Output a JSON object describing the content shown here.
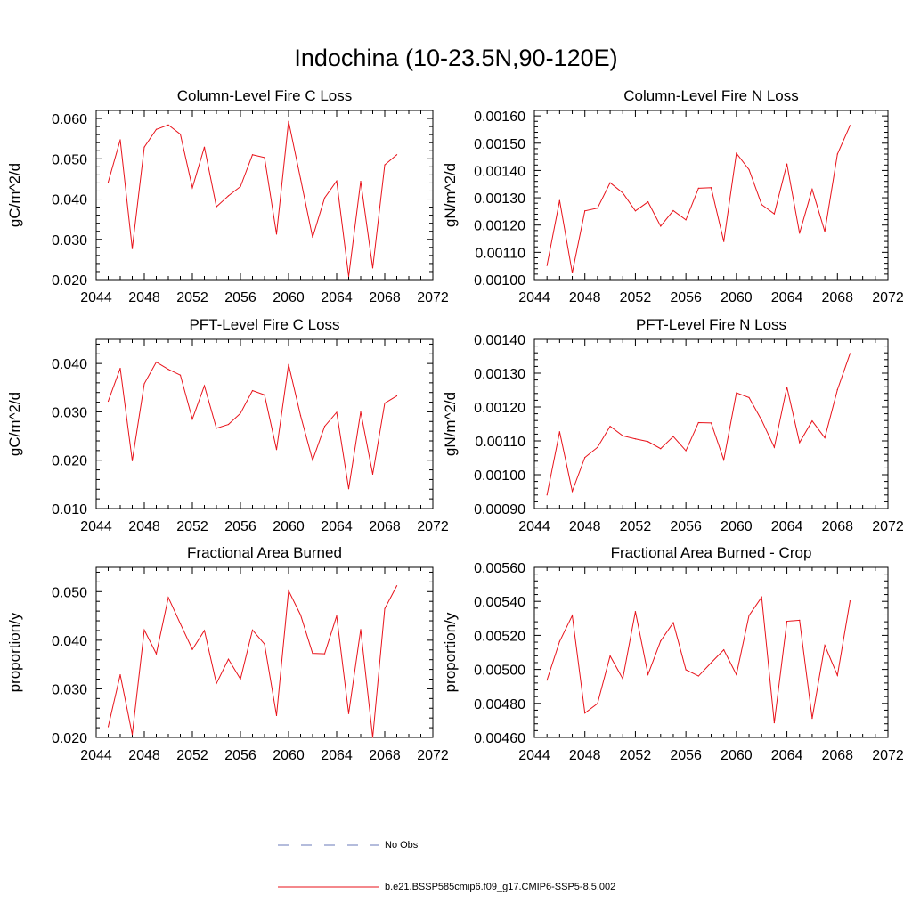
{
  "title": "Indochina (10-23.5N,90-120E)",
  "series_name": "b.e21.BSSP585cmip6.f09_g17.CMIP6-SSP5-8.5.002",
  "obs_name": "No Obs",
  "colors": {
    "series": "#e8121a",
    "obs": "#6a78b8",
    "axis": "#000000"
  },
  "chart_data": [
    {
      "type": "line",
      "title": "Column-Level Fire C Loss",
      "ylabel": "gC/m^2/d",
      "xlim": [
        2044,
        2072
      ],
      "ylim": [
        0.02,
        0.062
      ],
      "xticks": [
        "2044",
        "2048",
        "2052",
        "2056",
        "2060",
        "2064",
        "2068",
        "2072"
      ],
      "yticks": [
        0.02,
        0.03,
        0.04,
        0.05,
        0.06
      ],
      "ytick_labels": [
        "0.020",
        "0.030",
        "0.040",
        "0.050",
        "0.060"
      ],
      "x": [
        2045,
        2046,
        2047,
        2048,
        2049,
        2050,
        2051,
        2052,
        2053,
        2054,
        2055,
        2056,
        2057,
        2058,
        2059,
        2060,
        2061,
        2062,
        2063,
        2064,
        2065,
        2066,
        2067,
        2068,
        2069
      ],
      "values": [
        0.0442,
        0.0547,
        0.0277,
        0.0529,
        0.0573,
        0.0584,
        0.0561,
        0.0428,
        0.0529,
        0.0381,
        0.0408,
        0.0431,
        0.051,
        0.0503,
        0.0313,
        0.0593,
        0.045,
        0.0305,
        0.0403,
        0.0445,
        0.0208,
        0.0444,
        0.0229,
        0.0485,
        0.051
      ]
    },
    {
      "type": "line",
      "title": "Column-Level Fire N Loss",
      "ylabel": "gN/m^2/d",
      "xlim": [
        2044,
        2072
      ],
      "ylim": [
        0.001,
        0.00162
      ],
      "xticks": [
        "2044",
        "2048",
        "2052",
        "2056",
        "2060",
        "2064",
        "2068",
        "2072"
      ],
      "yticks": [
        0.001,
        0.0011,
        0.0012,
        0.0013,
        0.0014,
        0.0015,
        0.0016
      ],
      "ytick_labels": [
        "0.00100",
        "0.00110",
        "0.00120",
        "0.00130",
        "0.00140",
        "0.00150",
        "0.00160"
      ],
      "x": [
        2045,
        2046,
        2047,
        2048,
        2049,
        2050,
        2051,
        2052,
        2053,
        2054,
        2055,
        2056,
        2057,
        2058,
        2059,
        2060,
        2061,
        2062,
        2063,
        2064,
        2065,
        2066,
        2067,
        2068,
        2069
      ],
      "values": [
        0.001052,
        0.00129,
        0.001025,
        0.001252,
        0.001262,
        0.001355,
        0.001318,
        0.001252,
        0.001285,
        0.001196,
        0.001253,
        0.001219,
        0.001335,
        0.001337,
        0.00114,
        0.001463,
        0.001403,
        0.001275,
        0.001241,
        0.001424,
        0.00117,
        0.001331,
        0.001176,
        0.00146,
        0.001565
      ]
    },
    {
      "type": "line",
      "title": "PFT-Level Fire C Loss",
      "ylabel": "gC/m^2/d",
      "xlim": [
        2044,
        2072
      ],
      "ylim": [
        0.01,
        0.045
      ],
      "xticks": [
        "2044",
        "2048",
        "2052",
        "2056",
        "2060",
        "2064",
        "2068",
        "2072"
      ],
      "yticks": [
        0.01,
        0.02,
        0.03,
        0.04
      ],
      "ytick_labels": [
        "0.010",
        "0.020",
        "0.030",
        "0.040"
      ],
      "x": [
        2045,
        2046,
        2047,
        2048,
        2049,
        2050,
        2051,
        2052,
        2053,
        2054,
        2055,
        2056,
        2057,
        2058,
        2059,
        2060,
        2061,
        2062,
        2063,
        2064,
        2065,
        2066,
        2067,
        2068,
        2069
      ],
      "values": [
        0.0322,
        0.039,
        0.0199,
        0.0358,
        0.0403,
        0.0388,
        0.0376,
        0.0285,
        0.0354,
        0.0266,
        0.0274,
        0.0297,
        0.0344,
        0.0335,
        0.0222,
        0.0398,
        0.0292,
        0.02,
        0.027,
        0.0299,
        0.0141,
        0.03,
        0.0171,
        0.0318,
        0.0333
      ]
    },
    {
      "type": "line",
      "title": "PFT-Level Fire N Loss",
      "ylabel": "gN/m^2/d",
      "xlim": [
        2044,
        2072
      ],
      "ylim": [
        0.0009,
        0.0014
      ],
      "xticks": [
        "2044",
        "2048",
        "2052",
        "2056",
        "2060",
        "2064",
        "2068",
        "2072"
      ],
      "yticks": [
        0.0009,
        0.001,
        0.0011,
        0.0012,
        0.0013,
        0.0014
      ],
      "ytick_labels": [
        "0.00090",
        "0.00100",
        "0.00110",
        "0.00120",
        "0.00130",
        "0.00140"
      ],
      "x": [
        2045,
        2046,
        2047,
        2048,
        2049,
        2050,
        2051,
        2052,
        2053,
        2054,
        2055,
        2056,
        2057,
        2058,
        2059,
        2060,
        2061,
        2062,
        2063,
        2064,
        2065,
        2066,
        2067,
        2068,
        2069
      ],
      "values": [
        0.00094,
        0.001127,
        0.000951,
        0.001051,
        0.001081,
        0.001143,
        0.001115,
        0.001106,
        0.001098,
        0.001077,
        0.001113,
        0.001071,
        0.001154,
        0.001153,
        0.001044,
        0.001242,
        0.001228,
        0.001161,
        0.001081,
        0.001259,
        0.001095,
        0.001159,
        0.001109,
        0.001251,
        0.001358
      ]
    },
    {
      "type": "line",
      "title": "Fractional Area Burned",
      "ylabel": "proportion/y",
      "xlim": [
        2044,
        2072
      ],
      "ylim": [
        0.02,
        0.055
      ],
      "xticks": [
        "2044",
        "2048",
        "2052",
        "2056",
        "2060",
        "2064",
        "2068",
        "2072"
      ],
      "yticks": [
        0.02,
        0.03,
        0.04,
        0.05
      ],
      "ytick_labels": [
        "0.020",
        "0.030",
        "0.040",
        "0.050"
      ],
      "x": [
        2045,
        2046,
        2047,
        2048,
        2049,
        2050,
        2051,
        2052,
        2053,
        2054,
        2055,
        2056,
        2057,
        2058,
        2059,
        2060,
        2061,
        2062,
        2063,
        2064,
        2065,
        2066,
        2067,
        2068,
        2069
      ],
      "values": [
        0.0222,
        0.0329,
        0.0206,
        0.0421,
        0.0372,
        0.0488,
        0.0434,
        0.0381,
        0.042,
        0.0311,
        0.0361,
        0.032,
        0.0421,
        0.0392,
        0.0245,
        0.0502,
        0.0452,
        0.0373,
        0.0372,
        0.045,
        0.0249,
        0.0422,
        0.02,
        0.0465,
        0.0512
      ]
    },
    {
      "type": "line",
      "title": "Fractional Area Burned - Crop",
      "ylabel": "proportion/y",
      "xlim": [
        2044,
        2072
      ],
      "ylim": [
        0.0046,
        0.0056
      ],
      "xticks": [
        "2044",
        "2048",
        "2052",
        "2056",
        "2060",
        "2064",
        "2068",
        "2072"
      ],
      "yticks": [
        0.0046,
        0.0048,
        0.005,
        0.0052,
        0.0054,
        0.0056
      ],
      "ytick_labels": [
        "0.00460",
        "0.00480",
        "0.00500",
        "0.00520",
        "0.00540",
        "0.00560"
      ],
      "x": [
        2045,
        2046,
        2047,
        2048,
        2049,
        2050,
        2051,
        2052,
        2053,
        2054,
        2055,
        2056,
        2057,
        2058,
        2059,
        2060,
        2061,
        2062,
        2063,
        2064,
        2065,
        2066,
        2067,
        2068,
        2069
      ],
      "values": [
        0.004937,
        0.005164,
        0.005317,
        0.004743,
        0.004799,
        0.005079,
        0.004945,
        0.00534,
        0.00497,
        0.005167,
        0.005275,
        0.004998,
        0.004961,
        0.005039,
        0.005115,
        0.004969,
        0.005317,
        0.005425,
        0.004686,
        0.005283,
        0.005289,
        0.004712,
        0.005141,
        0.004965,
        0.005403
      ]
    }
  ]
}
